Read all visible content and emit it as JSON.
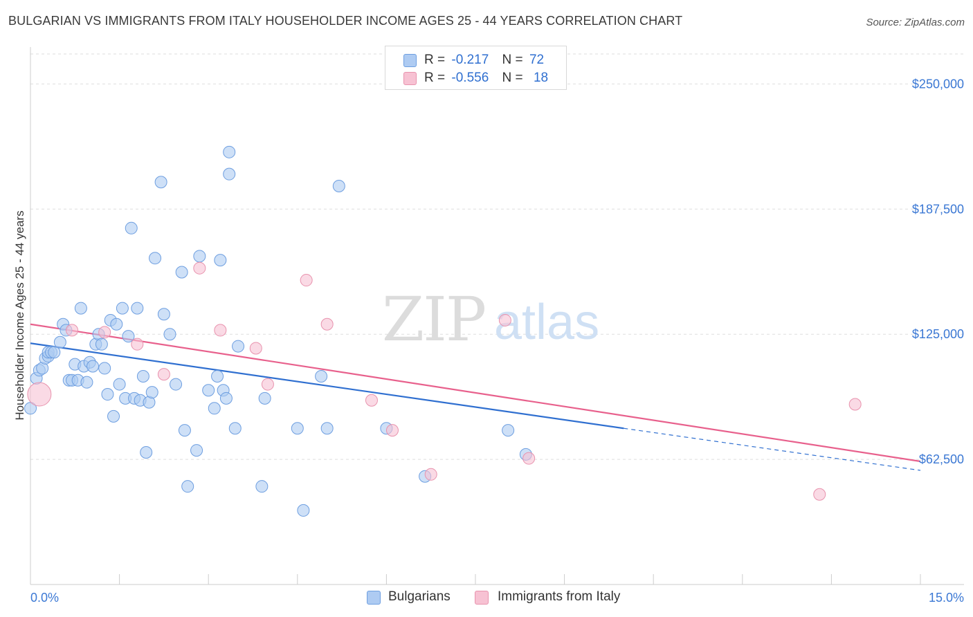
{
  "title": "BULGARIAN VS IMMIGRANTS FROM ITALY HOUSEHOLDER INCOME AGES 25 - 44 YEARS CORRELATION CHART",
  "source": "Source: ZipAtlas.com",
  "watermark": {
    "zip": "ZIP",
    "atlas": "atlas"
  },
  "legend": {
    "rows": [
      {
        "r_label": "R =",
        "r_value": "-0.217",
        "n_label": "N =",
        "n_value": "72"
      },
      {
        "r_label": "R =",
        "r_value": "-0.556",
        "n_label": "N =",
        "n_value": "18"
      }
    ]
  },
  "bottom_legend": {
    "series1": "Bulgarians",
    "series2": "Immigrants from Italy"
  },
  "colors": {
    "blue_fill": "#aecbf2",
    "blue_stroke": "#6d9ee0",
    "blue_line": "#2f6fd0",
    "pink_fill": "#f7c2d3",
    "pink_stroke": "#e892ad",
    "pink_line": "#e8608c",
    "tick_label": "#3b78d4",
    "grid": "#dedede"
  },
  "chart_data": {
    "type": "scatter",
    "title": "BULGARIAN VS IMMIGRANTS FROM ITALY HOUSEHOLDER INCOME AGES 25 - 44 YEARS CORRELATION CHART",
    "xlabel": "",
    "ylabel": "Householder Income Ages 25 - 44 years",
    "xlim": [
      0,
      15
    ],
    "ylim": [
      0,
      265000
    ],
    "x_tick_labels": [
      "0.0%",
      "15.0%"
    ],
    "y_ticks": [
      62500,
      125000,
      187500,
      250000
    ],
    "y_tick_labels": [
      "$62,500",
      "$125,000",
      "$187,500",
      "$250,000"
    ],
    "grid": true,
    "legend_position": "top-center",
    "series": [
      {
        "name": "Bulgarians",
        "r": -0.217,
        "n": 72,
        "trend": {
          "x0": 0.0,
          "y0": 120500,
          "x1": 10.0,
          "y1": 78000,
          "dashed_to_x": 15.0,
          "dashed_to_y": 57000
        },
        "points": [
          [
            0.0,
            88000
          ],
          [
            0.1,
            103000
          ],
          [
            0.15,
            107000
          ],
          [
            0.2,
            108000
          ],
          [
            0.25,
            113000
          ],
          [
            0.3,
            114000
          ],
          [
            0.3,
            116000
          ],
          [
            0.35,
            116000
          ],
          [
            0.4,
            116000
          ],
          [
            0.5,
            121000
          ],
          [
            0.55,
            130000
          ],
          [
            0.6,
            127000
          ],
          [
            0.65,
            102000
          ],
          [
            0.7,
            102000
          ],
          [
            0.75,
            110000
          ],
          [
            0.8,
            102000
          ],
          [
            0.85,
            138000
          ],
          [
            0.9,
            109000
          ],
          [
            0.95,
            101000
          ],
          [
            1.0,
            111000
          ],
          [
            1.05,
            109000
          ],
          [
            1.1,
            120000
          ],
          [
            1.15,
            125000
          ],
          [
            1.2,
            120000
          ],
          [
            1.25,
            108000
          ],
          [
            1.3,
            95000
          ],
          [
            1.35,
            132000
          ],
          [
            1.4,
            84000
          ],
          [
            1.45,
            130000
          ],
          [
            1.5,
            100000
          ],
          [
            1.55,
            138000
          ],
          [
            1.6,
            93000
          ],
          [
            1.65,
            124000
          ],
          [
            1.7,
            178000
          ],
          [
            1.75,
            93000
          ],
          [
            1.8,
            138000
          ],
          [
            1.85,
            92000
          ],
          [
            1.9,
            104000
          ],
          [
            1.95,
            66000
          ],
          [
            2.0,
            91000
          ],
          [
            2.05,
            96000
          ],
          [
            2.1,
            163000
          ],
          [
            2.2,
            201000
          ],
          [
            2.25,
            135000
          ],
          [
            2.35,
            125000
          ],
          [
            2.45,
            100000
          ],
          [
            2.55,
            156000
          ],
          [
            2.6,
            77000
          ],
          [
            2.65,
            49000
          ],
          [
            2.8,
            67000
          ],
          [
            2.85,
            164000
          ],
          [
            3.0,
            97000
          ],
          [
            3.1,
            88000
          ],
          [
            3.15,
            104000
          ],
          [
            3.2,
            162000
          ],
          [
            3.25,
            97000
          ],
          [
            3.3,
            93000
          ],
          [
            3.35,
            216000
          ],
          [
            3.35,
            205000
          ],
          [
            3.45,
            78000
          ],
          [
            3.5,
            119000
          ],
          [
            3.9,
            49000
          ],
          [
            3.95,
            93000
          ],
          [
            4.5,
            78000
          ],
          [
            4.6,
            37000
          ],
          [
            4.9,
            104000
          ],
          [
            5.0,
            78000
          ],
          [
            5.2,
            199000
          ],
          [
            6.0,
            78000
          ],
          [
            6.65,
            54000
          ],
          [
            8.05,
            77000
          ],
          [
            8.35,
            65000
          ]
        ]
      },
      {
        "name": "Immigrants from Italy",
        "r": -0.556,
        "n": 18,
        "trend": {
          "x0": 0.0,
          "y0": 130000,
          "x1": 15.0,
          "y1": 61500
        },
        "points": [
          [
            0.15,
            95000
          ],
          [
            0.7,
            127000
          ],
          [
            1.25,
            126000
          ],
          [
            1.8,
            120000
          ],
          [
            2.25,
            105000
          ],
          [
            2.85,
            158000
          ],
          [
            3.2,
            127000
          ],
          [
            3.8,
            118000
          ],
          [
            4.0,
            100000
          ],
          [
            4.65,
            152000
          ],
          [
            5.0,
            130000
          ],
          [
            5.75,
            92000
          ],
          [
            6.1,
            77000
          ],
          [
            6.75,
            55000
          ],
          [
            8.0,
            132000
          ],
          [
            8.4,
            63000
          ],
          [
            13.3,
            45000
          ],
          [
            13.9,
            90000
          ]
        ]
      }
    ]
  }
}
